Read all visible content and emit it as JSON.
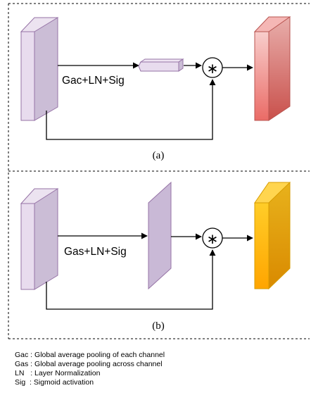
{
  "panel_a": {
    "operation_label": "Gac+LN+Sig",
    "caption": "(a)",
    "multiply_symbol": "∗",
    "input_color": "#e1d5e7",
    "pooled_color": "#e1d5e7",
    "output_colors": [
      "#f8cecc",
      "#ea6b66"
    ]
  },
  "panel_b": {
    "operation_label": "Gas+LN+Sig",
    "caption": "(b)",
    "multiply_symbol": "∗",
    "input_color": "#e1d5e7",
    "pooled_color": "#c9b9d6",
    "output_colors": [
      "#ffcd28",
      "#ffa500"
    ]
  },
  "legend": [
    {
      "abbr": "Gac",
      "sep": " : ",
      "desc": "Global average pooling of each channel"
    },
    {
      "abbr": "Gas",
      "sep": " : ",
      "desc": "Global average pooling across channel"
    },
    {
      "abbr": "LN",
      "sep": "   : ",
      "desc": "Layer Normalization"
    },
    {
      "abbr": "Sig",
      "sep": "  : ",
      "desc": "Sigmoid activation"
    }
  ]
}
